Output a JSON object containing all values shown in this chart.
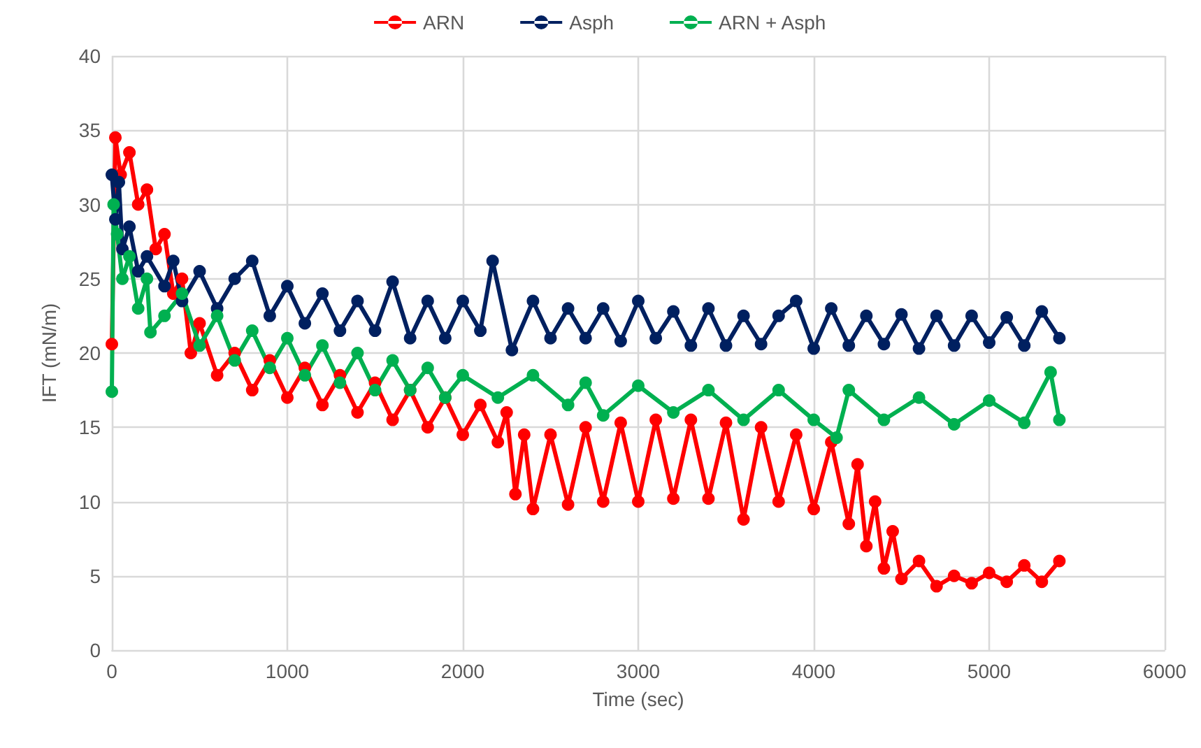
{
  "chart_data": {
    "type": "line",
    "xlabel": "Time (sec)",
    "ylabel": "IFT (mN/m)",
    "xlim": [
      0,
      6000
    ],
    "xticks": [
      0,
      1000,
      2000,
      3000,
      4000,
      5000,
      6000
    ],
    "ylim": [
      0,
      40
    ],
    "yticks": [
      0,
      5,
      10,
      15,
      20,
      25,
      30,
      35,
      40
    ],
    "grid": true,
    "legend": "top",
    "marker": "circle",
    "line_style": "solid",
    "series": [
      {
        "name": "ARN",
        "color": "#ff0000",
        "x": [
          0,
          20,
          50,
          100,
          150,
          200,
          250,
          300,
          350,
          400,
          450,
          500,
          600,
          700,
          800,
          900,
          1000,
          1100,
          1200,
          1300,
          1400,
          1500,
          1600,
          1700,
          1800,
          1900,
          2000,
          2100,
          2200,
          2250,
          2300,
          2350,
          2400,
          2500,
          2600,
          2700,
          2800,
          2900,
          3000,
          3100,
          3200,
          3300,
          3400,
          3500,
          3600,
          3700,
          3800,
          3900,
          4000,
          4100,
          4200,
          4250,
          4300,
          4350,
          4400,
          4450,
          4500,
          4600,
          4700,
          4800,
          4900,
          5000,
          5100,
          5200,
          5300,
          5400
        ],
        "values": [
          20.6,
          34.5,
          32,
          33.5,
          30,
          31,
          27,
          28,
          24,
          25,
          20,
          22,
          18.5,
          20,
          17.5,
          19.5,
          17,
          19,
          16.5,
          18.5,
          16,
          18,
          15.5,
          17.5,
          15,
          17,
          14.5,
          16.5,
          14,
          16,
          10.5,
          14.5,
          9.5,
          14.5,
          9.8,
          15,
          10,
          15.3,
          10,
          15.5,
          10.2,
          15.5,
          10.2,
          15.3,
          8.8,
          15,
          10,
          14.5,
          9.5,
          14,
          8.5,
          12.5,
          7,
          10,
          5.5,
          8,
          4.8,
          6,
          4.3,
          5,
          4.5,
          5.2,
          4.6,
          5.7,
          4.6,
          6
        ]
      },
      {
        "name": "Asph",
        "color": "#002060",
        "x": [
          0,
          20,
          40,
          60,
          100,
          150,
          200,
          300,
          350,
          400,
          500,
          600,
          700,
          800,
          900,
          1000,
          1100,
          1200,
          1300,
          1400,
          1500,
          1600,
          1700,
          1800,
          1900,
          2000,
          2100,
          2170,
          2280,
          2400,
          2500,
          2600,
          2700,
          2800,
          2900,
          3000,
          3100,
          3200,
          3300,
          3400,
          3500,
          3600,
          3700,
          3800,
          3900,
          4000,
          4100,
          4200,
          4300,
          4400,
          4500,
          4600,
          4700,
          4800,
          4900,
          5000,
          5100,
          5200,
          5300,
          5400
        ],
        "values": [
          32,
          29,
          31.5,
          27,
          28.5,
          25.5,
          26.5,
          24.5,
          26.2,
          23.5,
          25.5,
          23,
          25,
          26.2,
          22.5,
          24.5,
          22,
          24,
          21.5,
          23.5,
          21.5,
          24.8,
          21,
          23.5,
          21,
          23.5,
          21.5,
          26.2,
          20.2,
          23.5,
          21,
          23,
          21,
          23,
          20.8,
          23.5,
          21,
          22.8,
          20.5,
          23,
          20.5,
          22.5,
          20.6,
          22.5,
          23.5,
          20.3,
          23,
          20.5,
          22.5,
          20.6,
          22.6,
          20.3,
          22.5,
          20.5,
          22.5,
          20.7,
          22.4,
          20.5,
          22.8,
          21
        ]
      },
      {
        "name": "ARN + Asph",
        "color": "#00b050",
        "x": [
          0,
          10,
          30,
          60,
          100,
          150,
          200,
          220,
          300,
          400,
          500,
          600,
          700,
          800,
          900,
          1000,
          1100,
          1200,
          1300,
          1400,
          1500,
          1600,
          1700,
          1800,
          1900,
          2000,
          2200,
          2400,
          2600,
          2700,
          2800,
          3000,
          3200,
          3400,
          3600,
          3800,
          4000,
          4130,
          4200,
          4400,
          4600,
          4800,
          5000,
          5200,
          5350,
          5400
        ],
        "values": [
          17.4,
          30,
          28,
          25,
          26.5,
          23,
          25,
          21.4,
          22.5,
          24,
          20.5,
          22.5,
          19.5,
          21.5,
          19,
          21,
          18.5,
          20.5,
          18,
          20,
          17.5,
          19.5,
          17.5,
          19,
          17,
          18.5,
          17,
          18.5,
          16.5,
          18,
          15.8,
          17.8,
          16,
          17.5,
          15.5,
          17.5,
          15.5,
          14.3,
          17.5,
          15.5,
          17,
          15.2,
          16.8,
          15.3,
          18.7,
          15.5
        ]
      }
    ]
  }
}
